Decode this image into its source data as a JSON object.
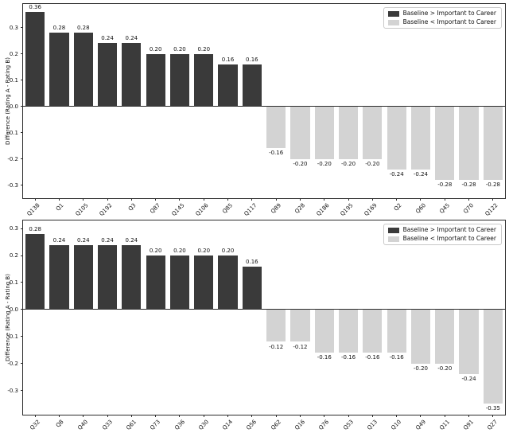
{
  "figure": {
    "background": "#ffffff"
  },
  "colors": {
    "positive_bar": "#3a3a3a",
    "negative_bar": "#d3d3d3",
    "spine": "#2b2b2b",
    "zero_line": "#2b2b2b",
    "text": "#111111",
    "legend_border": "#c9c9c9"
  },
  "legend": {
    "items": [
      {
        "label": "Baseline > Important to Career",
        "color": "#3a3a3a"
      },
      {
        "label": "Baseline < Important to Career",
        "color": "#d3d3d3"
      }
    ],
    "position": "upper right"
  },
  "chart_data": [
    {
      "type": "bar",
      "title": "",
      "xlabel": "",
      "ylabel": "Difference (Rating A - Rating B)",
      "categories": [
        "Q138",
        "Q1",
        "Q105",
        "Q192",
        "Q3",
        "Q87",
        "Q145",
        "Q106",
        "Q85",
        "Q117",
        "Q89",
        "Q28",
        "Q186",
        "Q195",
        "Q169",
        "Q2",
        "Q60",
        "Q45",
        "Q70",
        "Q122"
      ],
      "values": [
        0.36,
        0.28,
        0.28,
        0.24,
        0.24,
        0.2,
        0.2,
        0.2,
        0.16,
        0.16,
        -0.16,
        -0.2,
        -0.2,
        -0.2,
        -0.2,
        -0.24,
        -0.24,
        -0.28,
        -0.28,
        -0.28
      ],
      "yticks": [
        0.3,
        0.2,
        0.1,
        0.0,
        -0.1,
        -0.2,
        -0.3
      ],
      "ylim": [
        -0.35,
        0.39
      ],
      "grid": false,
      "legend_entries": [
        "Baseline > Important to Career",
        "Baseline < Important to Career"
      ],
      "legend_position": "upper right"
    },
    {
      "type": "bar",
      "title": "",
      "xlabel": "",
      "ylabel": "Difference (Rating A - Rating B)",
      "categories": [
        "Q32",
        "Q8",
        "Q40",
        "Q33",
        "Q61",
        "Q73",
        "Q36",
        "Q30",
        "Q14",
        "Q56",
        "Q62",
        "Q16",
        "Q76",
        "Q53",
        "Q13",
        "Q10",
        "Q49",
        "Q11",
        "Q91",
        "Q27"
      ],
      "values": [
        0.28,
        0.24,
        0.24,
        0.24,
        0.24,
        0.2,
        0.2,
        0.2,
        0.2,
        0.16,
        -0.12,
        -0.12,
        -0.16,
        -0.16,
        -0.16,
        -0.16,
        -0.2,
        -0.2,
        -0.24,
        -0.35
      ],
      "yticks": [
        0.3,
        0.2,
        0.1,
        0.0,
        -0.1,
        -0.2,
        -0.3
      ],
      "ylim": [
        -0.39,
        0.33
      ],
      "grid": false,
      "legend_entries": [
        "Baseline > Important to Career",
        "Baseline < Important to Career"
      ],
      "legend_position": "upper right"
    }
  ]
}
